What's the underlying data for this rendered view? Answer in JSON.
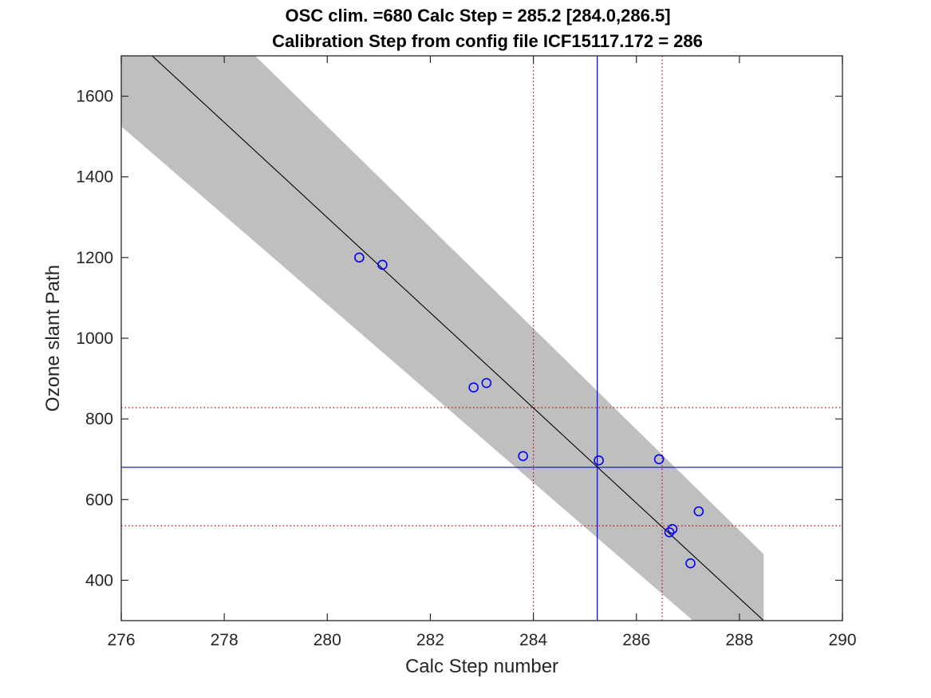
{
  "chart_data": {
    "type": "scatter",
    "title_line1": "OSC clim. =680   Calc Step = 285.2 [284.0,286.5]",
    "title_line2": "Calibration Step from config file ICF15117.172 = 286",
    "xlabel": "Calc Step number",
    "ylabel": "Ozone slant Path",
    "xlim": [
      276,
      290
    ],
    "ylim": [
      300,
      1700
    ],
    "xticks": [
      276,
      278,
      280,
      282,
      284,
      286,
      288,
      290
    ],
    "yticks": [
      400,
      600,
      800,
      1000,
      1200,
      1400,
      1600
    ],
    "grid": false,
    "points": {
      "x": [
        280.62,
        281.07,
        282.84,
        283.09,
        283.8,
        285.27,
        286.44,
        286.64,
        286.7,
        287.05,
        287.21
      ],
      "y": [
        1200,
        1182,
        878,
        889,
        708,
        697,
        700,
        519,
        527,
        442,
        571
      ],
      "color": "#0000ff"
    },
    "fit_line": {
      "x": [
        276.6,
        288.47
      ],
      "y": [
        1700,
        300
      ],
      "color": "#000000"
    },
    "confidence_band": {
      "x_start": 276,
      "x_end": 288.47,
      "upper_at_start": 1700,
      "upper_kink_x": 278.6,
      "upper_kink_y": 1700,
      "upper_at_end": 465,
      "lower_at_start": 1525,
      "lower_kink_x": 287.1,
      "lower_kink_y": 300,
      "lower_at_end": 300,
      "color": "#bfbfbf"
    },
    "reference_lines": {
      "calc_step": 285.24,
      "calc_step_low": 284.0,
      "calc_step_high": 286.5,
      "osc_clim": 680,
      "osc_upper": 828,
      "osc_lower": 535,
      "solid_color": "#0000ff",
      "dotted_color": "#cc0000"
    }
  }
}
